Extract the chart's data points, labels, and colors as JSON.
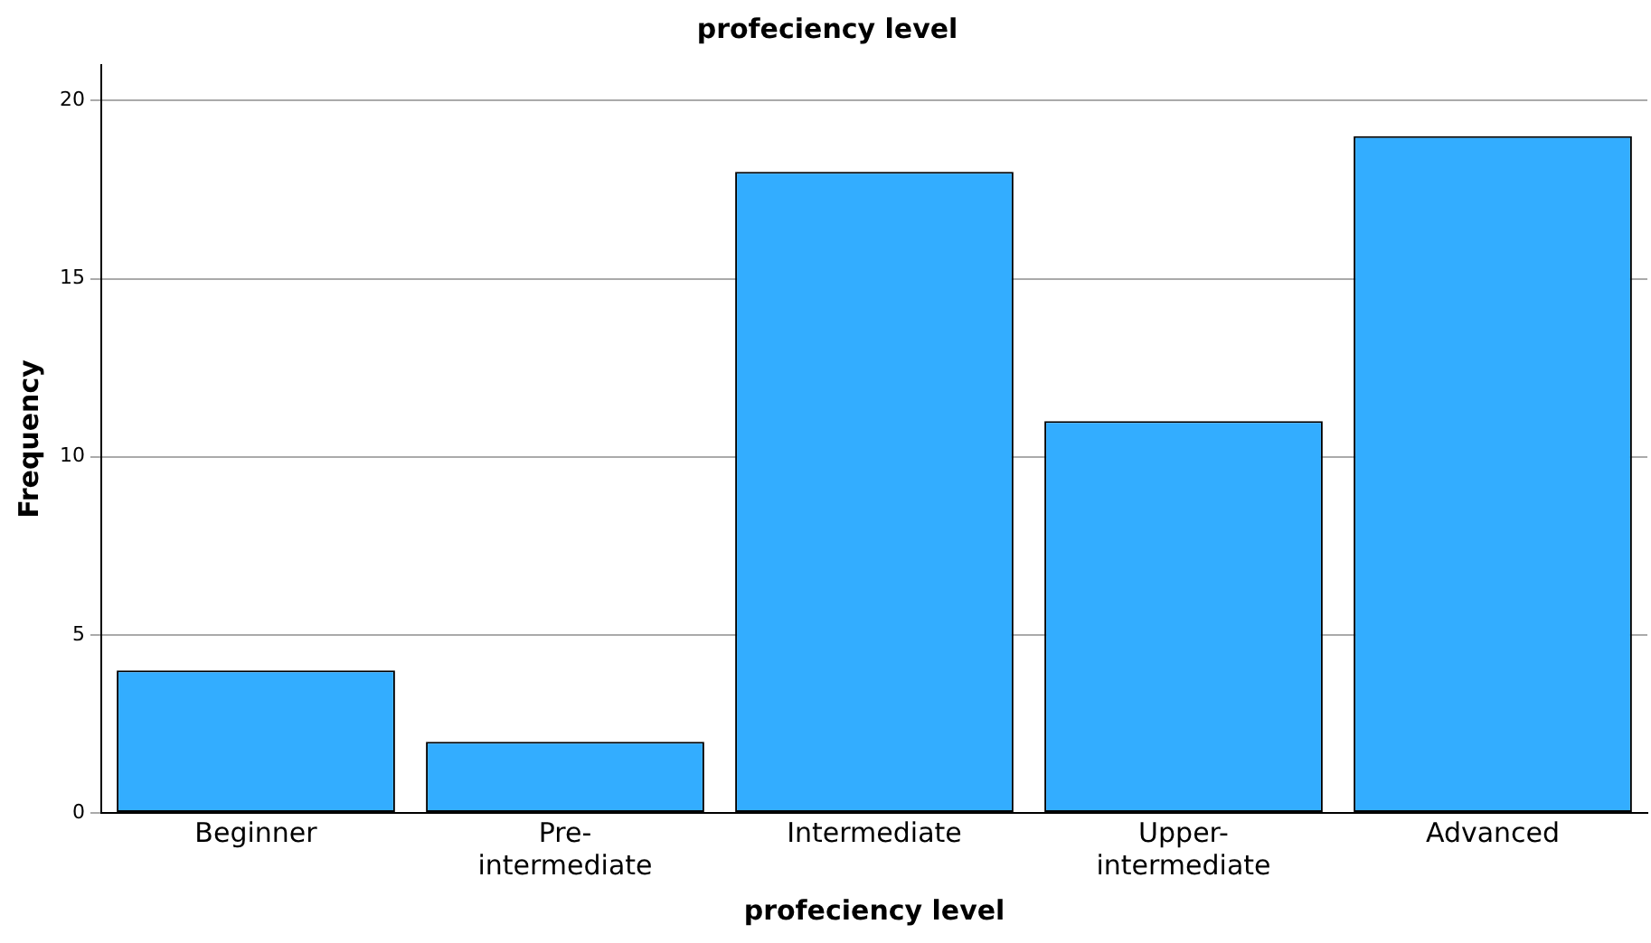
{
  "chart_data": {
    "type": "bar",
    "title": "profeciency level",
    "xlabel": "profeciency level",
    "ylabel": "Frequency",
    "categories": [
      "Beginner",
      "Pre-intermediate",
      "Intermediate",
      "Upper-intermediate",
      "Advanced"
    ],
    "values": [
      4,
      2,
      18,
      11,
      19
    ],
    "color": "#33adff",
    "ylim": [
      0,
      21
    ],
    "yticks": [
      0,
      5,
      10,
      15,
      20
    ],
    "grid": "y",
    "legend": false
  }
}
